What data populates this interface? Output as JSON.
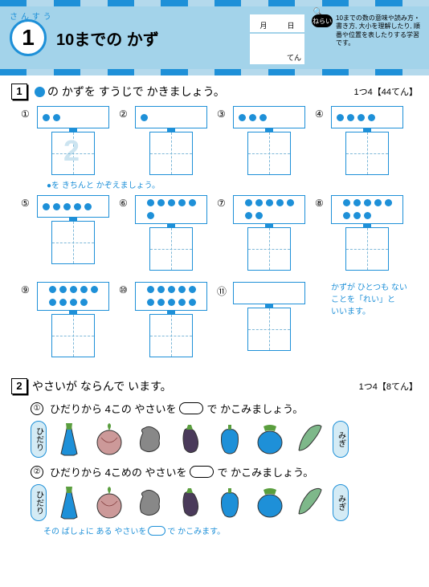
{
  "header": {
    "subject": "さんすう",
    "number": "1",
    "title": "10までの かず",
    "date_month": "月",
    "date_day": "日",
    "score_unit": "てん",
    "nerai_badge": "ねらい",
    "nerai_text": "10までの数の意味や読み方・書き方, 大小を理解したり, 順番や位置を表したりする学習です。"
  },
  "colors": {
    "primary": "#1e90d8",
    "light": "#a3d3ea",
    "lighter": "#d4ebf5",
    "ghost": "#cce4f0"
  },
  "q1": {
    "section_num": "1",
    "instruction_pre": "の かずを すうじで かきましょう。",
    "points": "1つ4【44てん】",
    "items": [
      {
        "num": "①",
        "dots": 2,
        "rows": 1,
        "ghost": "2"
      },
      {
        "num": "②",
        "dots": 1,
        "rows": 1
      },
      {
        "num": "③",
        "dots": 3,
        "rows": 1
      },
      {
        "num": "④",
        "dots": 4,
        "rows": 1
      },
      {
        "num": "⑤",
        "dots": 5,
        "rows": 1
      },
      {
        "num": "⑥",
        "dots": 6,
        "rows": 2
      },
      {
        "num": "⑦",
        "dots": 7,
        "rows": 2
      },
      {
        "num": "⑧",
        "dots": 8,
        "rows": 2
      },
      {
        "num": "⑨",
        "dots": 9,
        "rows": 2
      },
      {
        "num": "⑩",
        "dots": 10,
        "rows": 2
      },
      {
        "num": "⑪",
        "dots": 0,
        "rows": 1
      }
    ],
    "hint1": "●を きちんと かぞえましょう。",
    "hint2_l1": "かずが ひとつも ない",
    "hint2_l2": "ことを「れい」と",
    "hint2_l3": "いいます。"
  },
  "q2": {
    "section_num": "2",
    "instruction": "やさいが ならんで います。",
    "points": "1つ4【8てん】",
    "sub1_num": "①",
    "sub1_pre": "ひだりから 4この やさいを",
    "sub1_post": "で かこみましょう。",
    "sub2_num": "②",
    "sub2_pre": "ひだりから 4こめの やさいを",
    "sub2_post": "で かこみましょう。",
    "left_label": "ひだり",
    "right_label": "みぎ",
    "footer_pre": "その ばしょに ある やさいを",
    "footer_post": "で かこみます。"
  }
}
